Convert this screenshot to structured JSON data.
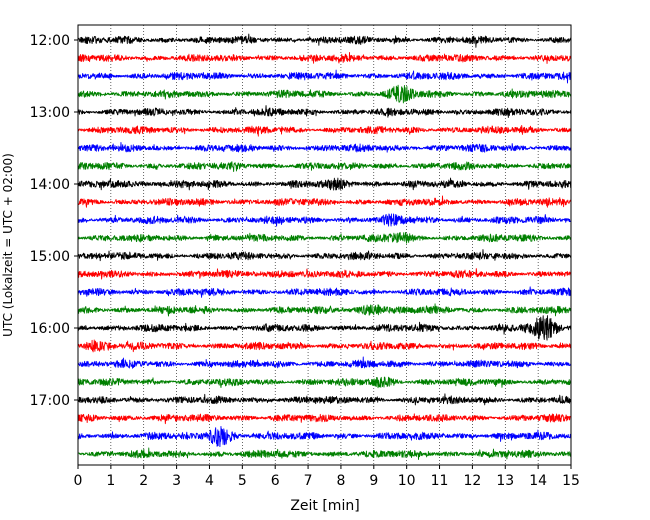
{
  "chart_data": {
    "type": "line",
    "title": "",
    "xlabel": "Zeit  [min]",
    "ylabel": "UTC (Lokalzeit = UTC + 02:00)",
    "xlim": [
      0,
      15
    ],
    "x_ticks": [
      "0",
      "1",
      "2",
      "3",
      "4",
      "5",
      "6",
      "7",
      "8",
      "9",
      "10",
      "11",
      "12",
      "13",
      "14",
      "15"
    ],
    "y_tick_labels": [
      "12:00",
      "13:00",
      "14:00",
      "15:00",
      "16:00",
      "17:00"
    ],
    "grid": "vertical dotted at each minute",
    "legend": "none",
    "trace_interval_minutes": 15,
    "trace_colors": [
      "#000000",
      "#ff0000",
      "#0000ff",
      "#008000"
    ],
    "traces": [
      {
        "start": "12:00",
        "color": "#000000"
      },
      {
        "start": "12:15",
        "color": "#ff0000"
      },
      {
        "start": "12:30",
        "color": "#0000ff"
      },
      {
        "start": "12:45",
        "color": "#008000",
        "events": [
          {
            "minute": 9.8,
            "amp": 2.0
          }
        ]
      },
      {
        "start": "13:00",
        "color": "#000000"
      },
      {
        "start": "13:15",
        "color": "#ff0000"
      },
      {
        "start": "13:30",
        "color": "#0000ff"
      },
      {
        "start": "13:45",
        "color": "#008000"
      },
      {
        "start": "14:00",
        "color": "#000000",
        "events": [
          {
            "minute": 1.3,
            "amp": 1.4
          },
          {
            "minute": 7.9,
            "amp": 1.5
          }
        ]
      },
      {
        "start": "14:15",
        "color": "#ff0000"
      },
      {
        "start": "14:30",
        "color": "#0000ff",
        "events": [
          {
            "minute": 9.6,
            "amp": 1.5
          }
        ]
      },
      {
        "start": "14:45",
        "color": "#008000",
        "events": [
          {
            "minute": 9.8,
            "amp": 1.5
          }
        ]
      },
      {
        "start": "15:00",
        "color": "#000000"
      },
      {
        "start": "15:15",
        "color": "#ff0000",
        "events": [
          {
            "minute": 6.3,
            "amp": 1.4
          }
        ]
      },
      {
        "start": "15:30",
        "color": "#0000ff"
      },
      {
        "start": "15:45",
        "color": "#008000",
        "events": [
          {
            "minute": 9.0,
            "amp": 1.8
          }
        ]
      },
      {
        "start": "16:00",
        "color": "#000000",
        "events": [
          {
            "minute": 14.2,
            "amp": 2.8
          }
        ]
      },
      {
        "start": "16:15",
        "color": "#ff0000",
        "events": [
          {
            "minute": 0.5,
            "amp": 1.7
          }
        ]
      },
      {
        "start": "16:30",
        "color": "#0000ff"
      },
      {
        "start": "16:45",
        "color": "#008000",
        "events": [
          {
            "minute": 9.3,
            "amp": 1.5
          }
        ]
      },
      {
        "start": "17:00",
        "color": "#000000"
      },
      {
        "start": "17:15",
        "color": "#ff0000"
      },
      {
        "start": "17:30",
        "color": "#0000ff",
        "events": [
          {
            "minute": 4.3,
            "amp": 2.6
          }
        ]
      },
      {
        "start": "17:45",
        "color": "#008000"
      }
    ]
  }
}
